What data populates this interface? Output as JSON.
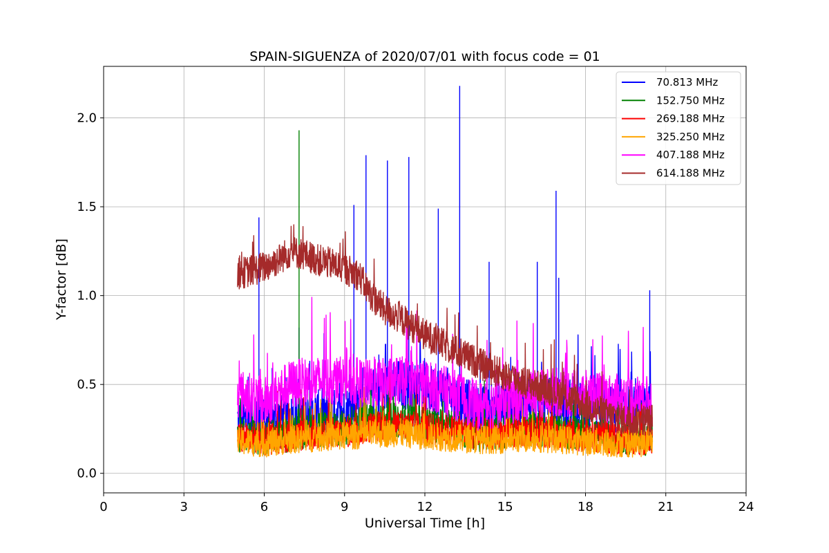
{
  "chart_data": {
    "type": "line",
    "title": "SPAIN-SIGUENZA of 2020/07/01 with focus code = 01",
    "xlabel": "Universal Time [h]",
    "ylabel": "Y-factor [dB]",
    "xlim": [
      0,
      24
    ],
    "ylim": [
      -0.11,
      2.29
    ],
    "xticks": [
      0,
      3,
      6,
      9,
      12,
      15,
      18,
      21,
      24
    ],
    "yticks": [
      0.0,
      0.5,
      1.0,
      1.5,
      2.0
    ],
    "xtick_labels": [
      "0",
      "3",
      "6",
      "9",
      "12",
      "15",
      "18",
      "21",
      "24"
    ],
    "ytick_labels": [
      "0.0",
      "0.5",
      "1.0",
      "1.5",
      "2.0"
    ],
    "grid": true,
    "legend_position": "top-right",
    "x_range_data": [
      5.0,
      20.5
    ],
    "series": [
      {
        "name": " 70.813 MHz",
        "color": "#0000ff",
        "x": [
          5.0,
          6.0,
          7.0,
          8.0,
          9.0,
          10.0,
          11.0,
          12.0,
          13.0,
          14.0,
          15.0,
          16.0,
          17.0,
          18.0,
          19.0,
          20.0,
          20.5
        ],
        "y": [
          0.3,
          0.28,
          0.32,
          0.33,
          0.34,
          0.45,
          0.5,
          0.48,
          0.45,
          0.35,
          0.38,
          0.42,
          0.4,
          0.38,
          0.35,
          0.36,
          0.35
        ],
        "spikes": [
          [
            5.8,
            1.44
          ],
          [
            7.3,
            0.82
          ],
          [
            9.35,
            1.51
          ],
          [
            9.8,
            1.79
          ],
          [
            10.6,
            1.76
          ],
          [
            11.4,
            1.78
          ],
          [
            12.5,
            1.49
          ],
          [
            13.3,
            2.18
          ],
          [
            14.4,
            1.19
          ],
          [
            16.2,
            1.19
          ],
          [
            16.9,
            1.59
          ],
          [
            17.0,
            1.1
          ],
          [
            20.4,
            1.03
          ]
        ]
      },
      {
        "name": "152.750 MHz",
        "color": "#008000",
        "x": [
          5.0,
          6.0,
          7.0,
          8.0,
          9.0,
          10.0,
          11.0,
          12.0,
          13.0,
          14.0,
          15.0,
          16.0,
          17.0,
          18.0,
          19.0,
          20.0,
          20.5
        ],
        "y": [
          0.22,
          0.2,
          0.22,
          0.24,
          0.25,
          0.3,
          0.3,
          0.28,
          0.26,
          0.22,
          0.23,
          0.25,
          0.24,
          0.22,
          0.21,
          0.2,
          0.2
        ],
        "spikes": [
          [
            7.3,
            1.93
          ]
        ]
      },
      {
        "name": "269.188 MHz",
        "color": "#ff0000",
        "x": [
          5.0,
          6.0,
          7.0,
          8.0,
          9.0,
          10.0,
          11.0,
          12.0,
          13.0,
          14.0,
          15.0,
          16.0,
          17.0,
          18.0,
          19.0,
          20.0,
          20.5
        ],
        "y": [
          0.2,
          0.19,
          0.21,
          0.22,
          0.23,
          0.26,
          0.27,
          0.25,
          0.24,
          0.22,
          0.22,
          0.24,
          0.23,
          0.21,
          0.2,
          0.19,
          0.2
        ],
        "spikes": []
      },
      {
        "name": "325.250 MHz",
        "color": "#ffa500",
        "x": [
          5.0,
          6.0,
          7.0,
          8.0,
          9.0,
          10.0,
          11.0,
          12.0,
          13.0,
          14.0,
          15.0,
          16.0,
          17.0,
          18.0,
          19.0,
          20.0,
          20.5
        ],
        "y": [
          0.18,
          0.17,
          0.19,
          0.2,
          0.21,
          0.22,
          0.23,
          0.21,
          0.2,
          0.19,
          0.19,
          0.2,
          0.19,
          0.18,
          0.17,
          0.17,
          0.18
        ],
        "spikes": []
      },
      {
        "name": "407.188 MHz",
        "color": "#ff00ff",
        "x": [
          5.0,
          6.0,
          7.0,
          8.0,
          9.0,
          10.0,
          11.0,
          12.0,
          13.0,
          14.0,
          15.0,
          16.0,
          17.0,
          18.0,
          19.0,
          20.0,
          20.5
        ],
        "y": [
          0.45,
          0.4,
          0.5,
          0.52,
          0.52,
          0.5,
          0.52,
          0.5,
          0.45,
          0.38,
          0.4,
          0.45,
          0.46,
          0.44,
          0.42,
          0.42,
          0.4
        ],
        "spikes": []
      },
      {
        "name": "614.188 MHz",
        "color": "#a52a2a",
        "x": [
          5.0,
          5.5,
          6.0,
          6.5,
          7.0,
          7.5,
          8.0,
          8.5,
          9.0,
          9.5,
          10.0,
          10.5,
          11.0,
          12.0,
          13.0,
          14.0,
          15.0,
          16.0,
          17.0,
          18.0,
          19.0,
          19.5,
          20.0,
          20.5
        ],
        "y": [
          1.12,
          1.14,
          1.16,
          1.2,
          1.25,
          1.23,
          1.2,
          1.18,
          1.15,
          1.12,
          1.0,
          0.92,
          0.88,
          0.78,
          0.7,
          0.62,
          0.55,
          0.5,
          0.45,
          0.38,
          0.32,
          0.3,
          0.3,
          0.3
        ],
        "spikes": []
      }
    ]
  }
}
